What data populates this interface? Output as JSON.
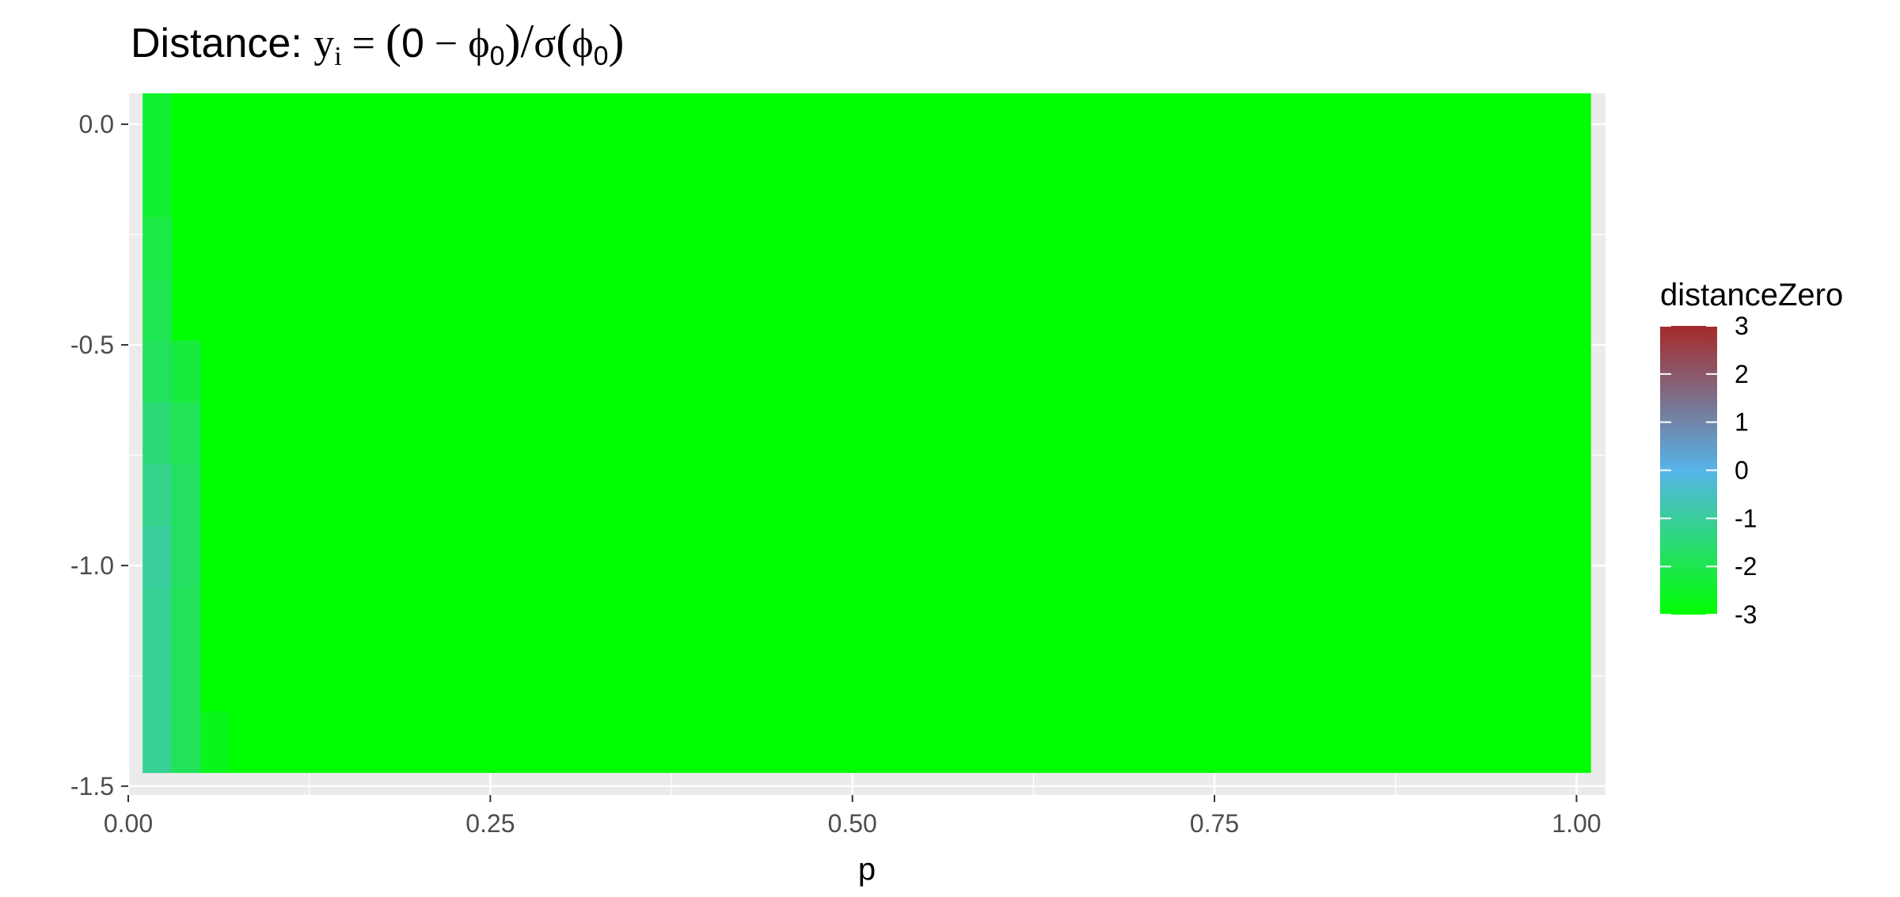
{
  "chart_data": {
    "type": "heatmap",
    "title_prefix": "Distance: ",
    "title_formula": {
      "y": "y",
      "sub_i": "i",
      "eq": " = ",
      "lparen": "(",
      "zero": "0",
      "minus": " − ",
      "phi": "ϕ",
      "sub0": "0",
      "rparen": ")",
      "slash": "/",
      "sigma": "σ"
    },
    "xlabel": "p",
    "ylabel": "",
    "xlim": [
      0,
      1.02
    ],
    "ylim": [
      -1.52,
      0.07
    ],
    "x_ticks": [
      0.0,
      0.25,
      0.5,
      0.75,
      1.0
    ],
    "x_tick_labels": [
      "0.00",
      "0.25",
      "0.50",
      "0.75",
      "1.00"
    ],
    "y_ticks": [
      0.0,
      -0.5,
      -1.0,
      -1.5
    ],
    "y_tick_labels": [
      "0.0",
      "-0.5",
      "-1.0",
      "-1.5"
    ],
    "grid": true,
    "panel_background": "#ebebeb",
    "heat_extent": {
      "x": [
        0.01,
        1.01
      ],
      "y": [
        -1.47,
        0.07
      ]
    },
    "background_value": -3,
    "cells": [
      {
        "x": [
          0.01,
          0.03
        ],
        "y": [
          -0.21,
          0.07
        ],
        "value": -2.4
      },
      {
        "x": [
          0.01,
          0.03
        ],
        "y": [
          -0.35,
          -0.21
        ],
        "value": -2.1
      },
      {
        "x": [
          0.01,
          0.03
        ],
        "y": [
          -0.49,
          -0.35
        ],
        "value": -1.95
      },
      {
        "x": [
          0.01,
          0.03
        ],
        "y": [
          -0.63,
          -0.49
        ],
        "value": -1.8
      },
      {
        "x": [
          0.01,
          0.03
        ],
        "y": [
          -0.77,
          -0.63
        ],
        "value": -1.5
      },
      {
        "x": [
          0.01,
          0.03
        ],
        "y": [
          -0.91,
          -0.77
        ],
        "value": -1.2
      },
      {
        "x": [
          0.01,
          0.03
        ],
        "y": [
          -1.05,
          -0.91
        ],
        "value": -1.0
      },
      {
        "x": [
          0.01,
          0.03
        ],
        "y": [
          -1.47,
          -1.05
        ],
        "value": -1.1
      },
      {
        "x": [
          0.03,
          0.05
        ],
        "y": [
          -0.63,
          -0.49
        ],
        "value": -2.2
      },
      {
        "x": [
          0.03,
          0.05
        ],
        "y": [
          -0.77,
          -0.63
        ],
        "value": -1.9
      },
      {
        "x": [
          0.03,
          0.05
        ],
        "y": [
          -1.05,
          -0.77
        ],
        "value": -1.75
      },
      {
        "x": [
          0.03,
          0.05
        ],
        "y": [
          -1.47,
          -1.05
        ],
        "value": -1.85
      },
      {
        "x": [
          0.05,
          0.07
        ],
        "y": [
          -1.47,
          -1.33
        ],
        "value": -2.65
      }
    ],
    "legend": {
      "title": "distanceZero",
      "position": "right",
      "range": [
        -3,
        3
      ],
      "breaks": [
        3,
        2,
        1,
        0,
        -1,
        -2,
        -3
      ],
      "break_labels": [
        "3",
        "2",
        "1",
        "0",
        "-1",
        "-2",
        "-3"
      ],
      "colors": {
        "-3": "#00ff00",
        "0": "#56b4e9",
        "3": "#a52a2a"
      }
    }
  }
}
